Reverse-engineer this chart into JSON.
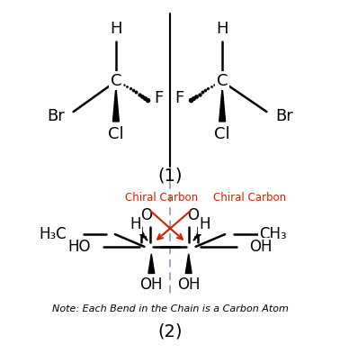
{
  "bg_color": "#ffffff",
  "divider_color": "#000000",
  "dashed_divider_color": "#9999bb",
  "bond_color": "#000000",
  "red_arrow_color": "#cc2200",
  "chiral_label_color": "#cc2200",
  "fig_width": 3.78,
  "fig_height": 3.93,
  "label1": "(1)",
  "label2": "(2)",
  "chiral_label": "Chiral Carbon",
  "note_text": "Note: Each Bend in the Chain is a Carbon Atom"
}
